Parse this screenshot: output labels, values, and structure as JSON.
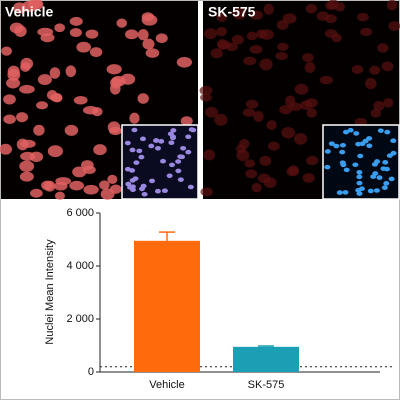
{
  "panels": [
    {
      "label": "Vehicle"
    },
    {
      "label": "SK-575"
    }
  ],
  "chart_data": {
    "type": "bar",
    "y_label": "Nuclei Mean Intensity",
    "categories": [
      "Vehicle",
      "SK-575"
    ],
    "values": [
      4950,
      950
    ],
    "errors": [
      330,
      30
    ],
    "colors": [
      "#ff6a0d",
      "#1a9fb5"
    ],
    "ylim": [
      0,
      6000
    ],
    "yticks": [
      0,
      {
        "value": 2000,
        "label": "2 000"
      },
      {
        "value": 4000,
        "label": "4 000"
      },
      {
        "value": 6000,
        "label": "6 000"
      }
    ],
    "hline": 200
  }
}
